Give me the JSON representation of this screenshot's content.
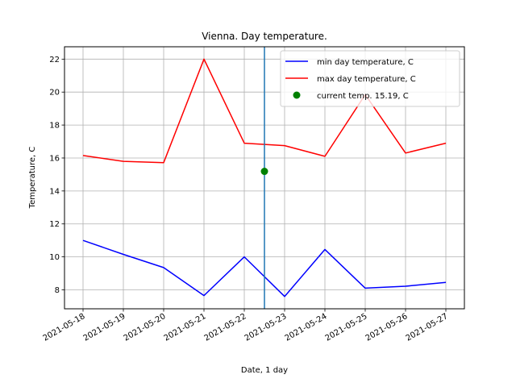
{
  "chart_data": {
    "type": "line",
    "title": "Vienna. Day temperature.",
    "xlabel": "Date, 1 day",
    "ylabel": "Temperature, C",
    "categories": [
      "2021-05-18",
      "2021-05-19",
      "2021-05-20",
      "2021-05-21",
      "2021-05-22",
      "2021-05-23",
      "2021-05-24",
      "2021-05-25",
      "2021-05-26",
      "2021-05-27"
    ],
    "series": [
      {
        "name": "min day temperature, C",
        "color": "#0000ff",
        "values": [
          11.0,
          10.15,
          9.35,
          7.65,
          10.0,
          7.6,
          10.45,
          8.1,
          8.22,
          8.45
        ]
      },
      {
        "name": "max day temperature, C",
        "color": "#ff0000",
        "values": [
          16.15,
          15.8,
          15.72,
          22.0,
          16.9,
          16.75,
          16.1,
          19.85,
          16.3,
          16.9
        ]
      }
    ],
    "current_point": {
      "name": "current temp. 15.19, C",
      "x": "2021-05-22 12:00",
      "y": 15.19,
      "color": "#008000"
    },
    "current_time_line": {
      "x": "2021-05-22 12:00",
      "color": "#1f77b4"
    },
    "ylim": [
      6.85,
      22.75
    ],
    "yticks": [
      8,
      10,
      12,
      14,
      16,
      18,
      20,
      22
    ],
    "grid": true,
    "legend_position": "upper right"
  }
}
